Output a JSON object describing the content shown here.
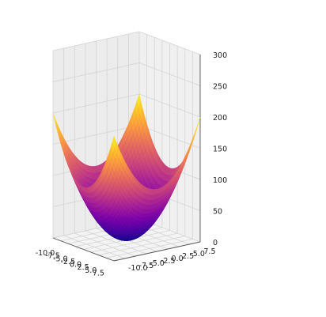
{
  "chart_data": {
    "type": "surface",
    "function": "z = x^2 + y^2",
    "x_range": [
      -10,
      10
    ],
    "y_range": [
      -10,
      10
    ],
    "z_range": [
      0,
      300
    ],
    "grid": true,
    "colormap": "plasma",
    "x_ticks": [
      "-10.0",
      "-7.5",
      "-5.0",
      "-2.5",
      "0.0",
      "2.5",
      "5.0",
      "7.5"
    ],
    "y_ticks": [
      "-10.0",
      "-7.5",
      "-5.0",
      "-2.5",
      "0.0",
      "2.5",
      "5.0",
      "7.5"
    ],
    "z_ticks": [
      "0",
      "50",
      "100",
      "150",
      "200",
      "250",
      "300"
    ],
    "colors": {
      "pane_left": "#ececec",
      "pane_back": "#f0f0f0",
      "pane_floor": "#f4f4f4",
      "grid": "#d4d4d4",
      "axis": "#555555",
      "text": "#222222"
    }
  }
}
